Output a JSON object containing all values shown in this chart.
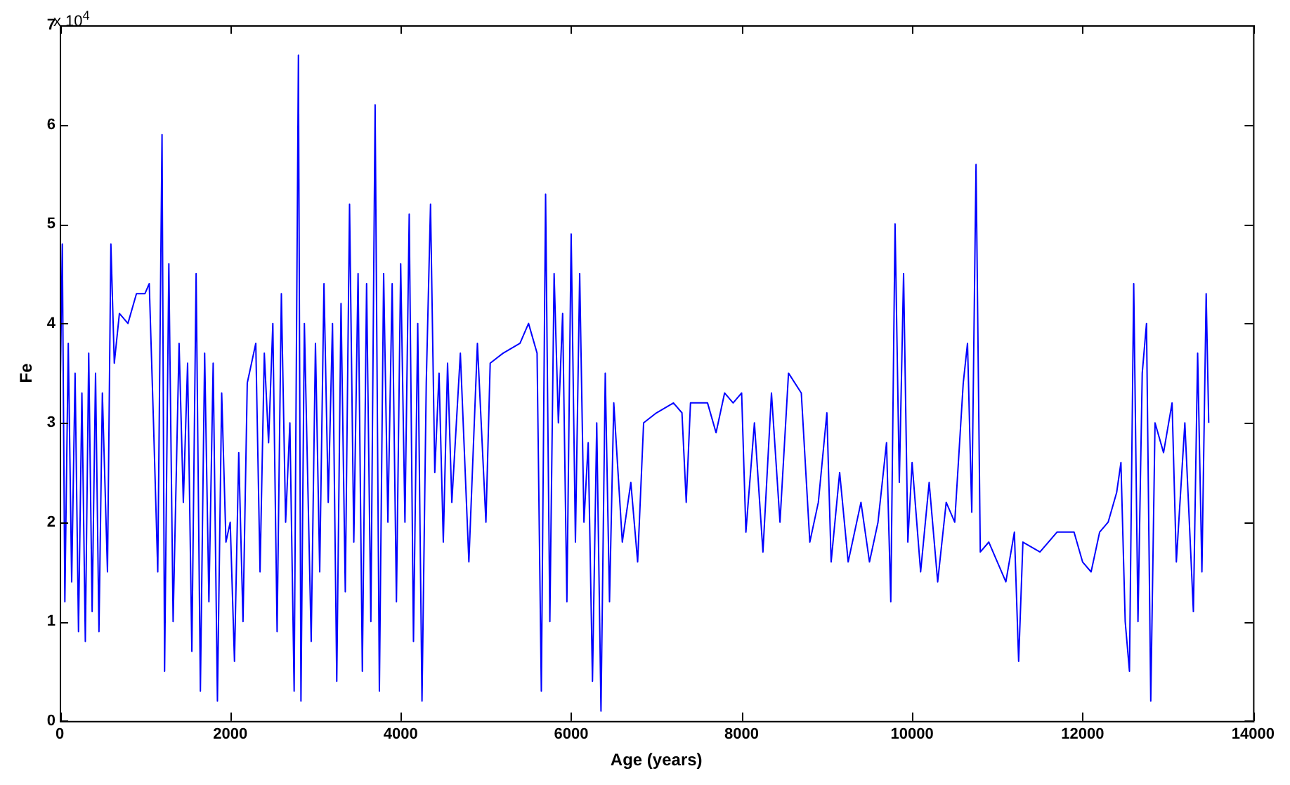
{
  "chart_data": {
    "type": "line",
    "xlabel": "Age (years)",
    "ylabel": "Fe",
    "annotations": [
      "x 10$^{4}$"
    ],
    "xlim": [
      0,
      14000
    ],
    "xticks": [
      0,
      2000,
      4000,
      6000,
      8000,
      10000,
      12000,
      14000
    ],
    "ylim": [
      0,
      7
    ],
    "yticks": [
      0,
      1,
      2,
      3,
      4,
      5,
      6,
      7
    ],
    "grid": false,
    "legend": false,
    "series": [
      {
        "color": "#0000ff",
        "x": [
          0,
          30,
          60,
          100,
          140,
          180,
          220,
          260,
          300,
          340,
          380,
          420,
          460,
          500,
          560,
          600,
          640,
          700,
          800,
          900,
          1000,
          1050,
          1100,
          1150,
          1200,
          1230,
          1280,
          1330,
          1400,
          1450,
          1500,
          1550,
          1600,
          1650,
          1700,
          1750,
          1800,
          1850,
          1900,
          1950,
          2000,
          2050,
          2100,
          2150,
          2200,
          2300,
          2350,
          2400,
          2450,
          2500,
          2550,
          2600,
          2650,
          2700,
          2750,
          2800,
          2830,
          2870,
          2950,
          3000,
          3050,
          3100,
          3150,
          3200,
          3250,
          3300,
          3350,
          3400,
          3450,
          3500,
          3550,
          3600,
          3650,
          3700,
          3750,
          3800,
          3850,
          3900,
          3950,
          4000,
          4050,
          4100,
          4150,
          4200,
          4250,
          4300,
          4350,
          4400,
          4450,
          4500,
          4550,
          4600,
          4700,
          4800,
          4900,
          5000,
          5050,
          5200,
          5400,
          5500,
          5600,
          5650,
          5700,
          5750,
          5800,
          5850,
          5900,
          5950,
          6000,
          6050,
          6100,
          6150,
          6200,
          6250,
          6300,
          6350,
          6400,
          6450,
          6500,
          6600,
          6700,
          6780,
          6850,
          7000,
          7200,
          7300,
          7350,
          7400,
          7600,
          7700,
          7800,
          7900,
          8000,
          8050,
          8150,
          8250,
          8350,
          8450,
          8550,
          8700,
          8800,
          8900,
          9000,
          9050,
          9150,
          9250,
          9400,
          9500,
          9600,
          9700,
          9750,
          9800,
          9850,
          9900,
          9950,
          10000,
          10100,
          10200,
          10300,
          10400,
          10500,
          10600,
          10650,
          10700,
          10750,
          10800,
          10900,
          11000,
          11100,
          11200,
          11250,
          11300,
          11500,
          11700,
          11900,
          12000,
          12100,
          12200,
          12300,
          12400,
          12450,
          12500,
          12550,
          12600,
          12650,
          12700,
          12750,
          12800,
          12850,
          12950,
          13050,
          13100,
          13200,
          13300,
          13350,
          13400,
          13450,
          13480
        ],
        "values": [
          3.0,
          4.8,
          1.2,
          3.8,
          1.4,
          3.5,
          0.9,
          3.3,
          0.8,
          3.7,
          1.1,
          3.5,
          0.9,
          3.3,
          1.5,
          4.8,
          3.6,
          4.1,
          4.0,
          4.3,
          4.3,
          4.4,
          3.0,
          1.5,
          5.9,
          0.5,
          4.6,
          1.0,
          3.8,
          2.2,
          3.6,
          0.7,
          4.5,
          0.3,
          3.7,
          1.2,
          3.6,
          0.2,
          3.3,
          1.8,
          2.0,
          0.6,
          2.7,
          1.0,
          3.4,
          3.8,
          1.5,
          3.7,
          2.8,
          4.0,
          0.9,
          4.3,
          2.0,
          3.0,
          0.3,
          6.7,
          0.2,
          4.0,
          0.8,
          3.8,
          1.5,
          4.4,
          2.2,
          4.0,
          0.4,
          4.2,
          1.3,
          5.2,
          1.8,
          4.5,
          0.5,
          4.4,
          1.0,
          6.2,
          0.3,
          4.5,
          2.0,
          4.4,
          1.2,
          4.6,
          2.0,
          5.1,
          0.8,
          4.0,
          0.2,
          3.4,
          5.2,
          2.5,
          3.5,
          1.8,
          3.6,
          2.2,
          3.7,
          1.6,
          3.8,
          2.0,
          3.6,
          3.7,
          3.8,
          4.0,
          3.7,
          0.3,
          5.3,
          1.0,
          4.5,
          3.0,
          4.1,
          1.2,
          4.9,
          1.8,
          4.5,
          2.0,
          2.8,
          0.4,
          3.0,
          0.1,
          3.5,
          1.2,
          3.2,
          1.8,
          2.4,
          1.6,
          3.0,
          3.1,
          3.2,
          3.1,
          2.2,
          3.2,
          3.2,
          2.9,
          3.3,
          3.2,
          3.3,
          1.9,
          3.0,
          1.7,
          3.3,
          2.0,
          3.5,
          3.3,
          1.8,
          2.2,
          3.1,
          1.6,
          2.5,
          1.6,
          2.2,
          1.6,
          2.0,
          2.8,
          1.2,
          5.0,
          2.4,
          4.5,
          1.8,
          2.6,
          1.5,
          2.4,
          1.4,
          2.2,
          2.0,
          3.4,
          3.8,
          2.1,
          5.6,
          1.7,
          1.8,
          1.6,
          1.4,
          1.9,
          0.6,
          1.8,
          1.7,
          1.9,
          1.9,
          1.6,
          1.5,
          1.9,
          2.0,
          2.3,
          2.6,
          1.0,
          0.5,
          4.4,
          1.0,
          3.5,
          4.0,
          0.2,
          3.0,
          2.7,
          3.2,
          1.6,
          3.0,
          1.1,
          3.7,
          1.5,
          4.3,
          3.0
        ]
      }
    ]
  }
}
